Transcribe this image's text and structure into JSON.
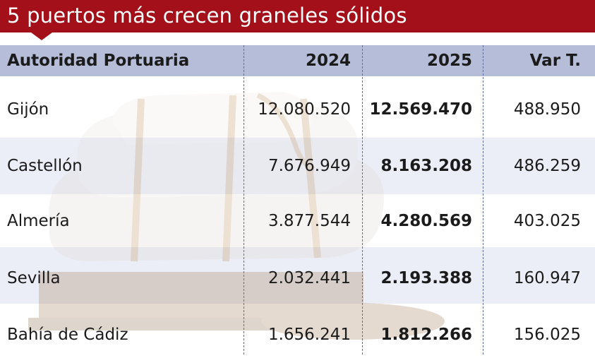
{
  "title": "5 puertos más crecen graneles sólidos",
  "chart_data": {
    "type": "table",
    "columns": [
      "Autoridad Portuaria",
      "2024",
      "2025",
      "Var T."
    ],
    "rows": [
      {
        "name": "Gijón",
        "v2024": "12.080.520",
        "v2025": "12.569.470",
        "var": "488.950"
      },
      {
        "name": "Castellón",
        "v2024": "7.676.949",
        "v2025": "8.163.208",
        "var": "486.259"
      },
      {
        "name": "Almería",
        "v2024": "3.877.544",
        "v2025": "4.280.569",
        "var": "403.025"
      },
      {
        "name": "Sevilla",
        "v2024": "2.032.441",
        "v2025": "2.193.388",
        "var": "160.947"
      },
      {
        "name": "Bahía de Cádiz",
        "v2024": "1.656.241",
        "v2025": "1.812.266",
        "var": "156.025"
      }
    ]
  },
  "colors": {
    "title_bg": "#a31019",
    "header_bg": "#b5bdd8",
    "band_bg": "#e4e8f4",
    "separator": "#5a6fa0"
  }
}
